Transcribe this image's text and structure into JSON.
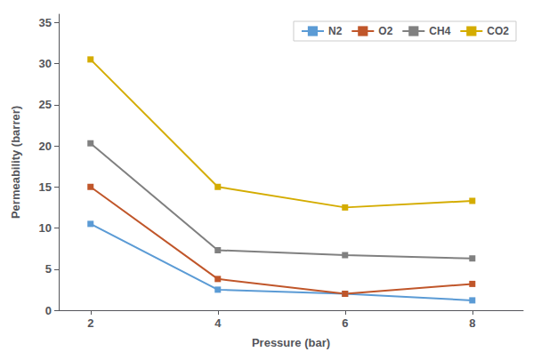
{
  "chart_data": {
    "type": "line",
    "x": [
      2,
      4,
      6,
      8
    ],
    "series": [
      {
        "name": "N2",
        "color": "#5B9BD5",
        "marker": "square",
        "values": [
          10.5,
          2.5,
          2.0,
          1.2
        ]
      },
      {
        "name": "O2",
        "color": "#C0562A",
        "marker": "square",
        "values": [
          15.0,
          3.8,
          2.0,
          3.2
        ]
      },
      {
        "name": "CH4",
        "color": "#808080",
        "marker": "square",
        "values": [
          20.3,
          7.3,
          6.7,
          6.3
        ]
      },
      {
        "name": "CO2",
        "color": "#D4AC00",
        "marker": "square",
        "values": [
          30.5,
          15.0,
          12.5,
          13.3
        ]
      }
    ],
    "xlabel": "Pressure (bar)",
    "ylabel": "Permeability (barrer)",
    "xlim": [
      1.5,
      8.8
    ],
    "ylim": [
      0,
      36
    ],
    "xticks": [
      2,
      4,
      6,
      8
    ],
    "yticks": [
      0,
      5,
      10,
      15,
      20,
      25,
      30,
      35
    ],
    "grid": false,
    "legend": "upper right"
  }
}
